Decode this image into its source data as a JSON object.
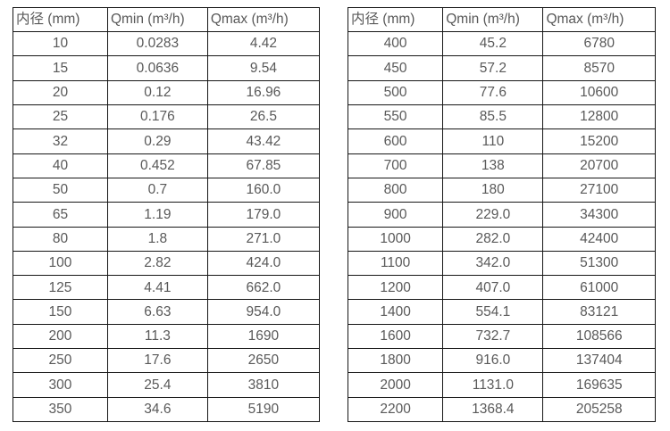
{
  "colors": {
    "background": "#ffffff",
    "border": "#161616",
    "text": "#595959"
  },
  "tables": [
    {
      "name": "flow-rate-table-small-diameters",
      "headers": [
        "内径 (mm)",
        "Qmin (m³/h)",
        "Qmax (m³/h)"
      ],
      "rows": [
        [
          "10",
          "0.0283",
          "4.42"
        ],
        [
          "15",
          "0.0636",
          "9.54"
        ],
        [
          "20",
          "0.12",
          "16.96"
        ],
        [
          "25",
          "0.176",
          "26.5"
        ],
        [
          "32",
          "0.29",
          "43.42"
        ],
        [
          "40",
          "0.452",
          "67.85"
        ],
        [
          "50",
          "0.7",
          "160.0"
        ],
        [
          "65",
          "1.19",
          "179.0"
        ],
        [
          "80",
          "1.8",
          "271.0"
        ],
        [
          "100",
          "2.82",
          "424.0"
        ],
        [
          "125",
          "4.41",
          "662.0"
        ],
        [
          "150",
          "6.63",
          "954.0"
        ],
        [
          "200",
          "11.3",
          "1690"
        ],
        [
          "250",
          "17.6",
          "2650"
        ],
        [
          "300",
          "25.4",
          "3810"
        ],
        [
          "350",
          "34.6",
          "5190"
        ]
      ]
    },
    {
      "name": "flow-rate-table-large-diameters",
      "headers": [
        "内径 (mm)",
        "Qmin (m³/h)",
        "Qmax (m³/h)"
      ],
      "rows": [
        [
          "400",
          "45.2",
          "6780"
        ],
        [
          "450",
          "57.2",
          "8570"
        ],
        [
          "500",
          "77.6",
          "10600"
        ],
        [
          "550",
          "85.5",
          "12800"
        ],
        [
          "600",
          "110",
          "15200"
        ],
        [
          "700",
          "138",
          "20700"
        ],
        [
          "800",
          "180",
          "27100"
        ],
        [
          "900",
          "229.0",
          "34300"
        ],
        [
          "1000",
          "282.0",
          "42400"
        ],
        [
          "1100",
          "342.0",
          "51300"
        ],
        [
          "1200",
          "407.0",
          "61000"
        ],
        [
          "1400",
          "554.1",
          "83121"
        ],
        [
          "1600",
          "732.7",
          "108566"
        ],
        [
          "1800",
          "916.0",
          "137404"
        ],
        [
          "2000",
          "1131.0",
          "169635"
        ],
        [
          "2200",
          "1368.4",
          "205258"
        ]
      ]
    }
  ]
}
